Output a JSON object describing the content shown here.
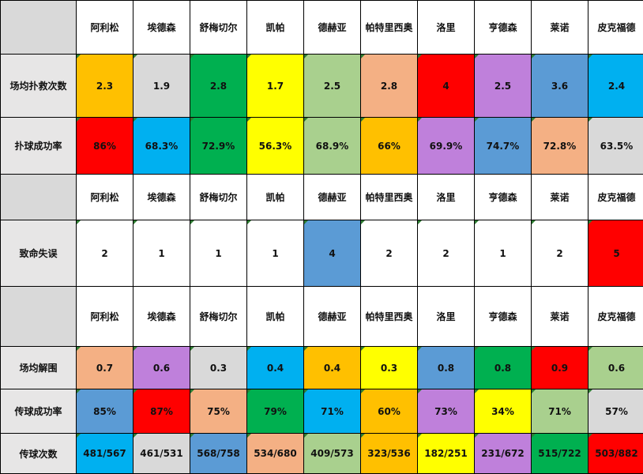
{
  "palette": {
    "orange": "#FFC000",
    "gray": "#D9D9D9",
    "green": "#00B050",
    "yellow": "#FFFF00",
    "lightgreen": "#A9D08E",
    "salmon": "#F4B084",
    "red": "#FF0000",
    "purple": "#BF80DB",
    "blue": "#5B9BD5",
    "cyan": "#00B0F0",
    "white": "#FFFFFF"
  },
  "players": [
    "阿利松",
    "埃德森",
    "舒梅切尔",
    "凯帕",
    "德赫亚",
    "帕特里西奥",
    "洛里",
    "亨德森",
    "莱诺",
    "皮克福德"
  ],
  "sections": [
    {
      "rows": [
        {
          "label": "场均扑救次数",
          "values": [
            "2.3",
            "1.9",
            "2.8",
            "1.7",
            "2.5",
            "2.8",
            "4",
            "2.5",
            "3.6",
            "2.4"
          ],
          "colors": [
            "orange",
            "gray",
            "green",
            "yellow",
            "lightgreen",
            "salmon",
            "red",
            "purple",
            "blue",
            "cyan"
          ]
        },
        {
          "label": "扑球成功率",
          "values": [
            "86%",
            "68.3%",
            "72.9%",
            "56.3%",
            "68.9%",
            "66%",
            "69.9%",
            "74.7%",
            "72.8%",
            "63.5%"
          ],
          "colors": [
            "red",
            "cyan",
            "green",
            "yellow",
            "lightgreen",
            "orange",
            "purple",
            "blue",
            "salmon",
            "gray"
          ]
        }
      ]
    },
    {
      "rows": [
        {
          "label": "致命失误",
          "values": [
            "2",
            "1",
            "1",
            "1",
            "4",
            "2",
            "2",
            "1",
            "2",
            "5"
          ],
          "colors": [
            "white",
            "white",
            "white",
            "white",
            "blue",
            "white",
            "white",
            "white",
            "white",
            "red"
          ]
        }
      ]
    },
    {
      "rows": [
        {
          "label": "场均解围",
          "values": [
            "0.7",
            "0.6",
            "0.3",
            "0.4",
            "0.4",
            "0.3",
            "0.8",
            "0.8",
            "0.9",
            "0.6"
          ],
          "colors": [
            "salmon",
            "purple",
            "gray",
            "cyan",
            "orange",
            "yellow",
            "blue",
            "green",
            "red",
            "lightgreen"
          ]
        },
        {
          "label": "传球成功率",
          "values": [
            "85%",
            "87%",
            "75%",
            "79%",
            "71%",
            "60%",
            "73%",
            "34%",
            "71%",
            "57%"
          ],
          "colors": [
            "blue",
            "red",
            "salmon",
            "green",
            "cyan",
            "orange",
            "purple",
            "yellow",
            "lightgreen",
            "gray"
          ]
        },
        {
          "label": "传球次数",
          "values": [
            "481/567",
            "461/531",
            "568/758",
            "534/680",
            "409/573",
            "323/536",
            "182/251",
            "231/672",
            "515/722",
            "503/882"
          ],
          "colors": [
            "cyan",
            "gray",
            "blue",
            "salmon",
            "lightgreen",
            "orange",
            "yellow",
            "purple",
            "green",
            "red"
          ]
        }
      ]
    }
  ]
}
